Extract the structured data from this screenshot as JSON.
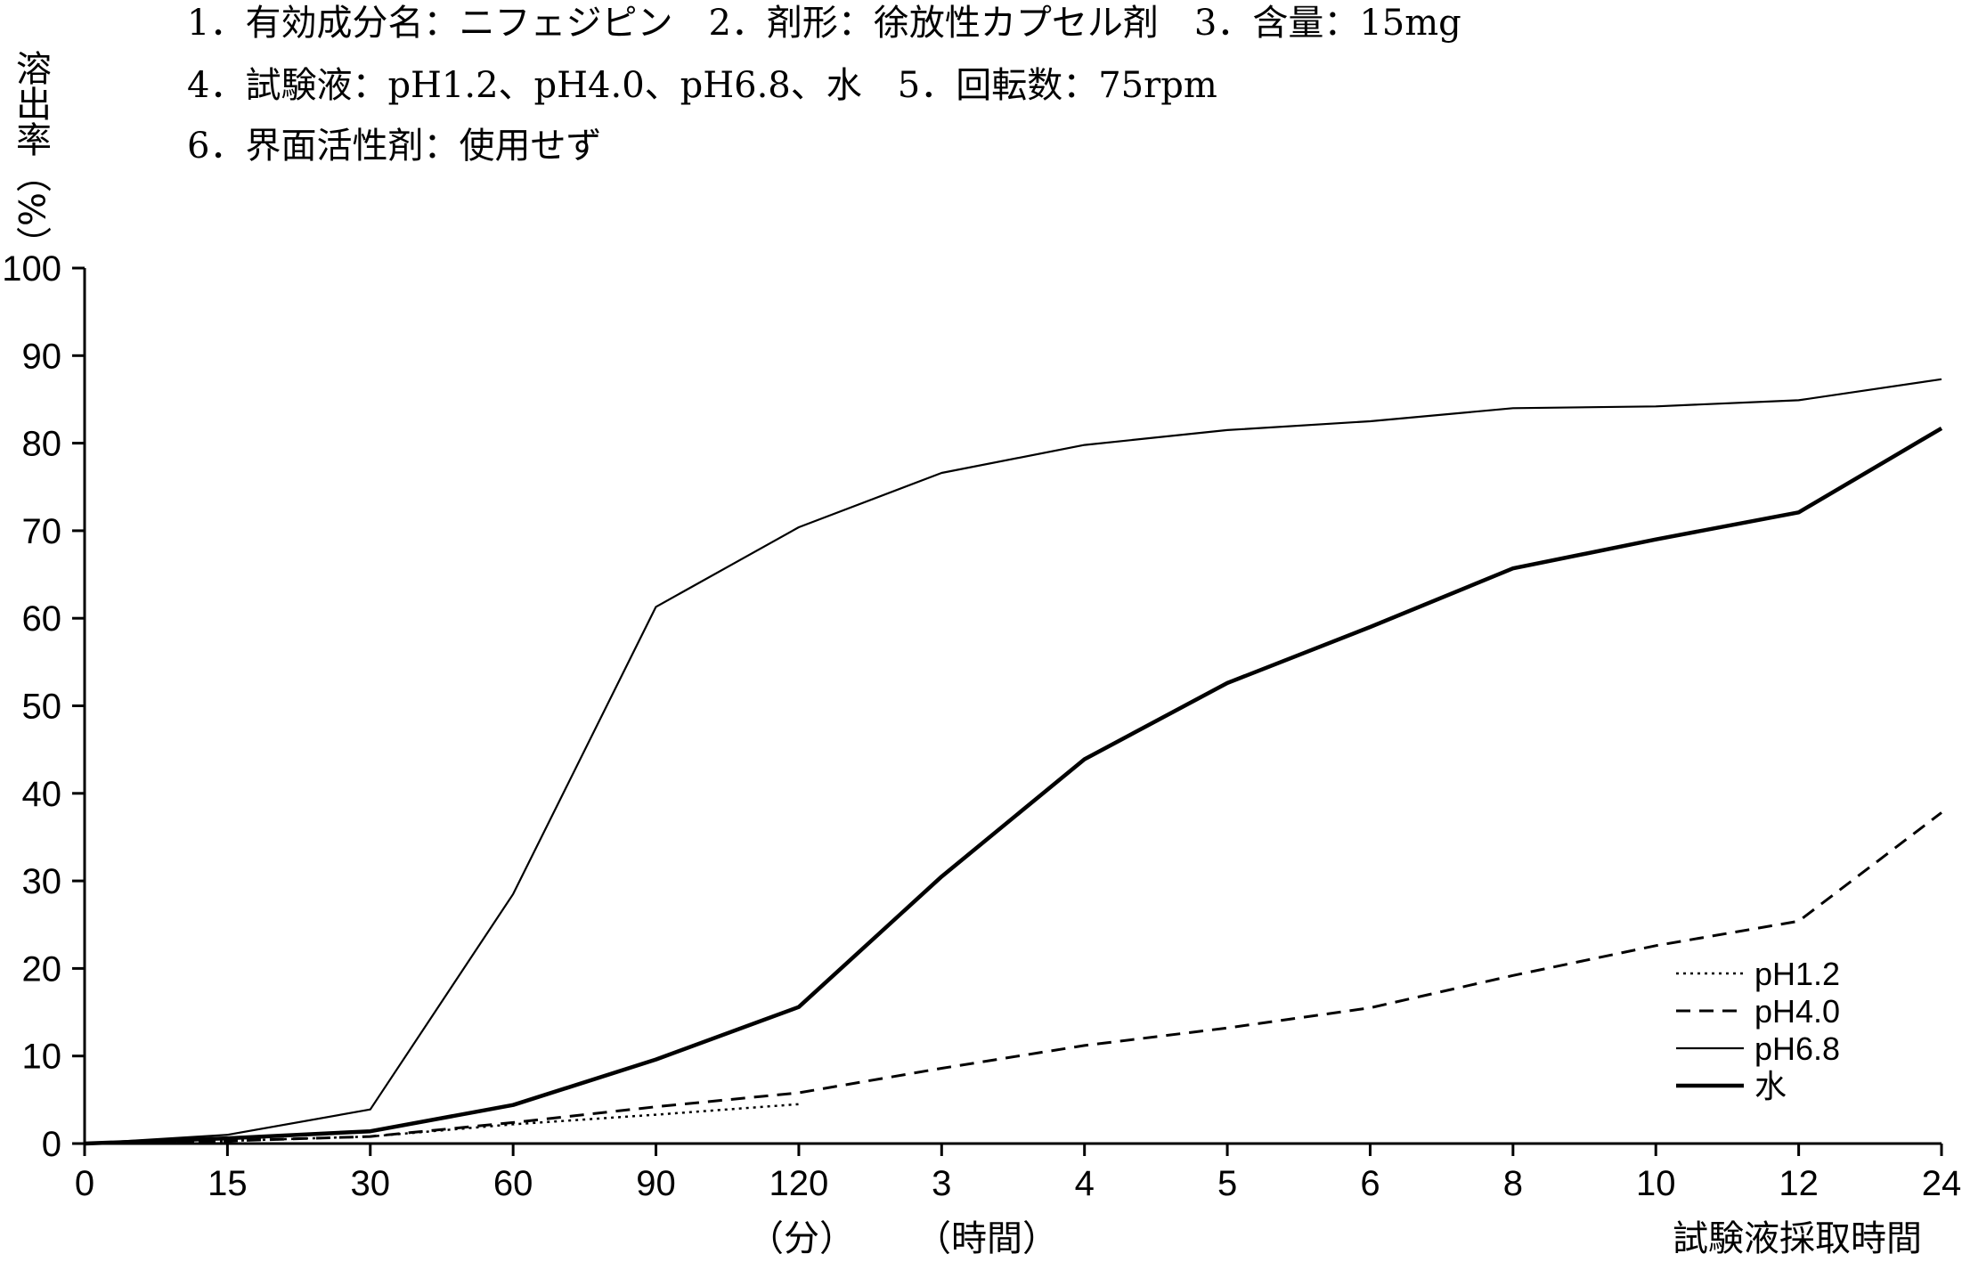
{
  "header": {
    "line1": "1．有効成分名：ニフェジピン　2．剤形：徐放性カプセル剤　3．含量：15mg",
    "line2": "4．試験液：pH1.2、pH4.0、pH6.8、水　5．回転数：75rpm",
    "line3": "6．界面活性剤：使用せず"
  },
  "chart_data": {
    "type": "line",
    "title": "",
    "ylabel": "溶出率（%）",
    "xlabel": "試験液採取時間",
    "x_unit_labels": [
      "（分）",
      "（時間）"
    ],
    "ylim": [
      0,
      100
    ],
    "yticks": [
      0,
      10,
      20,
      30,
      40,
      50,
      60,
      70,
      80,
      90,
      100
    ],
    "categories": [
      "0",
      "15",
      "30",
      "60",
      "90",
      "120",
      "3",
      "4",
      "5",
      "6",
      "8",
      "10",
      "12",
      "24"
    ],
    "legend_position": "bottom-right",
    "grid": false,
    "series": [
      {
        "name": "pH1.2",
        "style": "dotted",
        "color": "#000000",
        "values": [
          0,
          0.3,
          0.8,
          2.2,
          3.3,
          4.5,
          null,
          null,
          null,
          null,
          null,
          null,
          null,
          null
        ]
      },
      {
        "name": "pH4.0",
        "style": "dashed",
        "color": "#000000",
        "values": [
          0,
          0.3,
          0.8,
          2.4,
          4.2,
          5.8,
          8.6,
          11.2,
          13.2,
          15.5,
          19.2,
          22.6,
          25.4,
          37.8
        ]
      },
      {
        "name": "pH6.8",
        "style": "thin",
        "color": "#000000",
        "values": [
          0,
          1.0,
          3.9,
          28.5,
          61.3,
          70.4,
          76.6,
          79.8,
          81.5,
          82.5,
          84.0,
          84.2,
          84.9,
          87.3
        ]
      },
      {
        "name": "水",
        "style": "thick",
        "color": "#000000",
        "values": [
          0,
          0.6,
          1.4,
          4.4,
          9.6,
          15.6,
          30.5,
          43.9,
          52.6,
          59.0,
          65.7,
          69.0,
          72.1,
          81.7
        ]
      }
    ]
  }
}
